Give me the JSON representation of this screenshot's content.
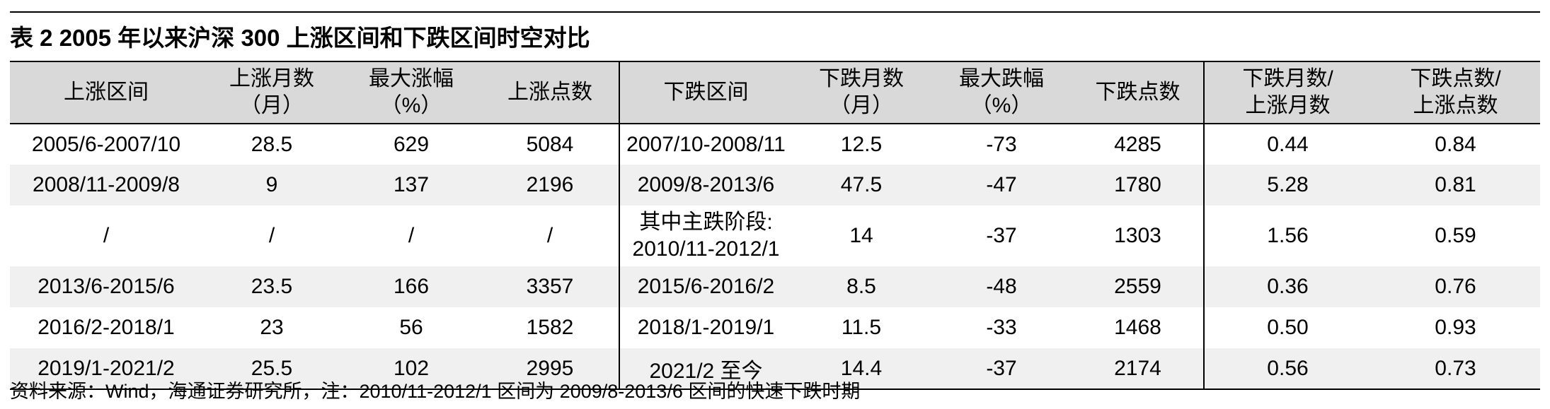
{
  "title": "表 2  2005 年以来沪深 300 上涨区间和下跌区间时空对比",
  "headers": [
    {
      "line1": "上涨区间",
      "line2": ""
    },
    {
      "line1": "上涨月数",
      "line2": "（月）"
    },
    {
      "line1": "最大涨幅",
      "line2": "（%）"
    },
    {
      "line1": "上涨点数",
      "line2": ""
    },
    {
      "line1": "下跌区间",
      "line2": ""
    },
    {
      "line1": "下跌月数",
      "line2": "（月）"
    },
    {
      "line1": "最大跌幅",
      "line2": "（%）"
    },
    {
      "line1": "下跌点数",
      "line2": ""
    },
    {
      "line1": "下跌月数/",
      "line2": "上涨月数"
    },
    {
      "line1": "下跌点数/",
      "line2": "上涨点数"
    }
  ],
  "rows": [
    {
      "up_range": "2005/6-2007/10",
      "up_months": "28.5",
      "max_gain": "629",
      "up_points": "5084",
      "down_range": "2007/10-2008/11",
      "down_range_line2": "",
      "down_months": "12.5",
      "max_drop": "-73",
      "down_points": "4285",
      "month_ratio": "0.44",
      "point_ratio": "0.84"
    },
    {
      "up_range": "2008/11-2009/8",
      "up_months": "9",
      "max_gain": "137",
      "up_points": "2196",
      "down_range": "2009/8-2013/6",
      "down_range_line2": "",
      "down_months": "47.5",
      "max_drop": "-47",
      "down_points": "1780",
      "month_ratio": "5.28",
      "point_ratio": "0.81"
    },
    {
      "up_range": "/",
      "up_months": "/",
      "max_gain": "/",
      "up_points": "/",
      "down_range": "其中主跌阶段:",
      "down_range_line2": "2010/11-2012/1",
      "down_months": "14",
      "max_drop": "-37",
      "down_points": "1303",
      "month_ratio": "1.56",
      "point_ratio": "0.59"
    },
    {
      "up_range": "2013/6-2015/6",
      "up_months": "23.5",
      "max_gain": "166",
      "up_points": "3357",
      "down_range": "2015/6-2016/2",
      "down_range_line2": "",
      "down_months": "8.5",
      "max_drop": "-48",
      "down_points": "2559",
      "month_ratio": "0.36",
      "point_ratio": "0.76"
    },
    {
      "up_range": "2016/2-2018/1",
      "up_months": "23",
      "max_gain": "56",
      "up_points": "1582",
      "down_range": "2018/1-2019/1",
      "down_range_line2": "",
      "down_months": "11.5",
      "max_drop": "-33",
      "down_points": "1468",
      "month_ratio": "0.50",
      "point_ratio": "0.93"
    },
    {
      "up_range": "2019/1-2021/2",
      "up_months": "25.5",
      "max_gain": "102",
      "up_points": "2995",
      "down_range": "2021/2 至今",
      "down_range_line2": "",
      "down_months": "14.4",
      "max_drop": "-37",
      "down_points": "2174",
      "month_ratio": "0.56",
      "point_ratio": "0.73"
    }
  ],
  "note": "资料来源：Wind，海通证券研究所，注：2010/11-2012/1 区间为 2009/8-2013/6 区间的快速下跌时期"
}
